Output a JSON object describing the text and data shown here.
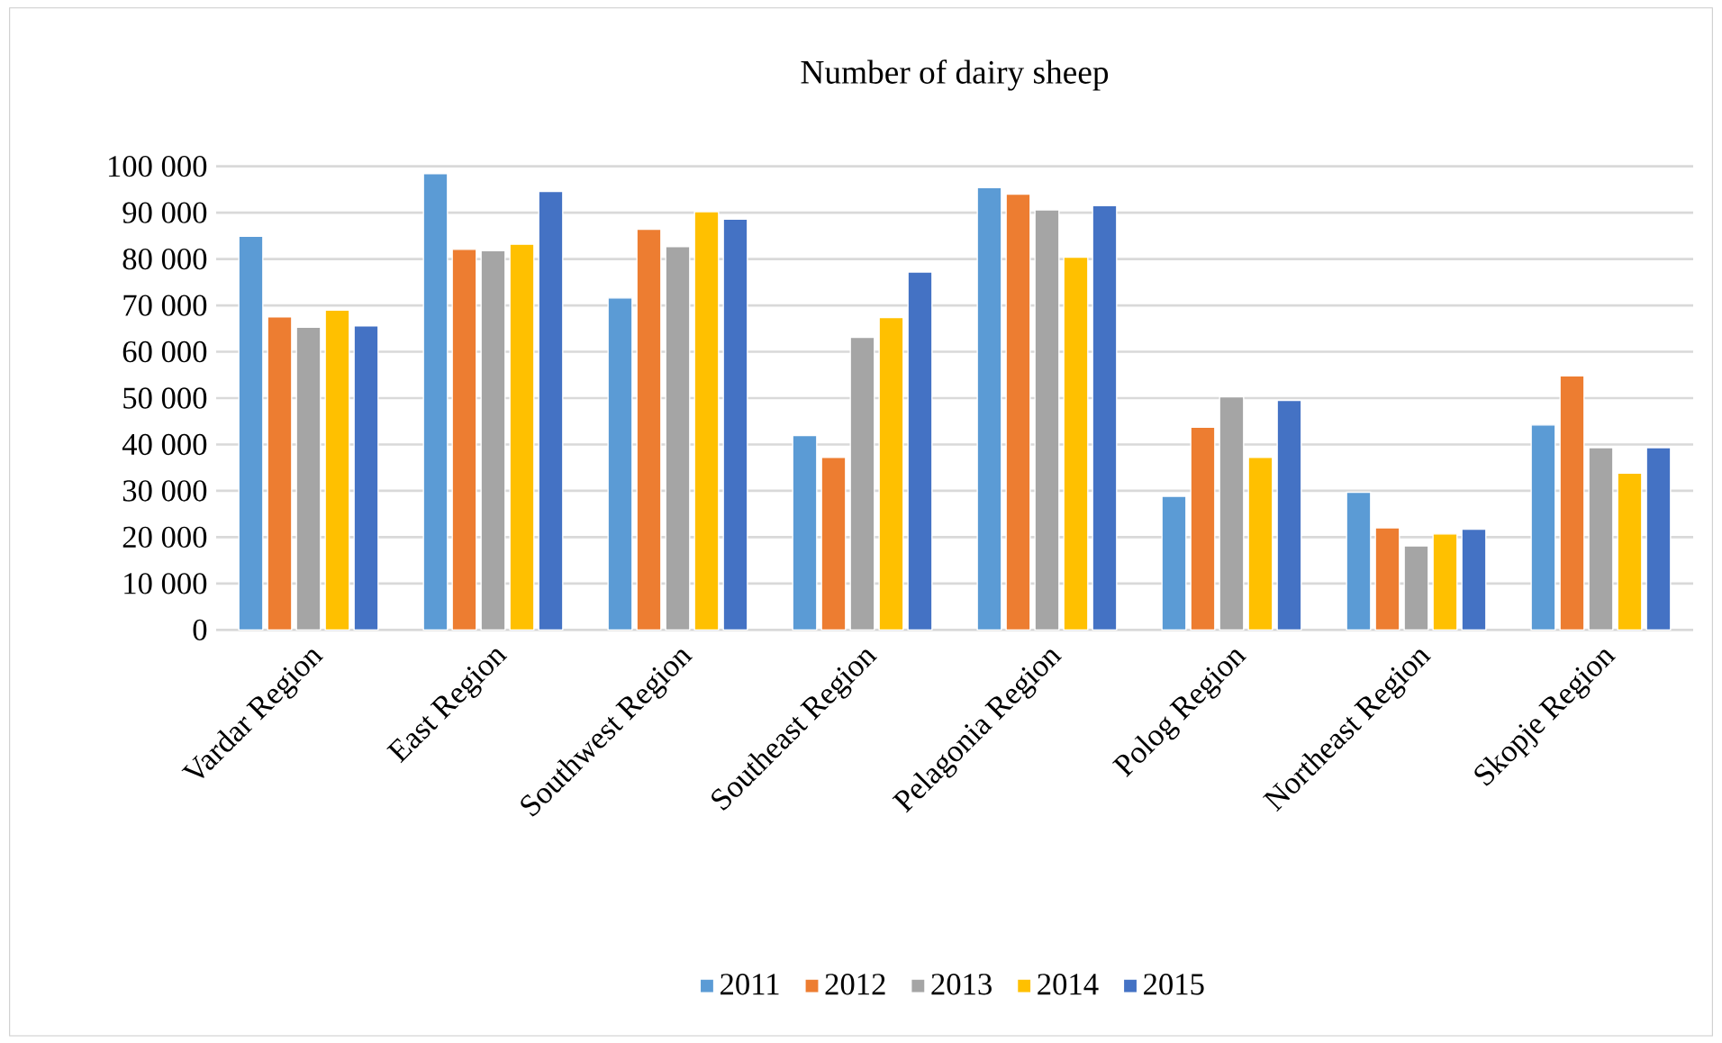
{
  "chart_data": {
    "type": "bar",
    "title": "Number of dairy sheep",
    "categories": [
      "Vardar Region",
      "East Region",
      "Southwest Region",
      "Southeast Region",
      "Pelagonia Region",
      "Polog Region",
      "Northeast Region",
      "Skopje Region"
    ],
    "series": [
      {
        "name": "2011",
        "color": "#5b9bd5",
        "values": [
          84900,
          98400,
          71600,
          41900,
          95400,
          28800,
          29700,
          44200
        ]
      },
      {
        "name": "2012",
        "color": "#ed7d31",
        "values": [
          67500,
          82100,
          86400,
          37200,
          94000,
          43700,
          22000,
          54800
        ]
      },
      {
        "name": "2013",
        "color": "#a5a5a5",
        "values": [
          65300,
          81800,
          82700,
          63100,
          90600,
          50300,
          18100,
          39300
        ]
      },
      {
        "name": "2014",
        "color": "#ffc000",
        "values": [
          69000,
          83200,
          90200,
          67400,
          80400,
          37200,
          20700,
          33800
        ]
      },
      {
        "name": "2015",
        "color": "#4472c4",
        "values": [
          65600,
          94600,
          88600,
          77200,
          91500,
          49500,
          21700,
          39300
        ]
      }
    ],
    "ylim": [
      0,
      100000
    ],
    "yticks": [
      {
        "value": 0,
        "label": "0"
      },
      {
        "value": 10000,
        "label": "10 000"
      },
      {
        "value": 20000,
        "label": "20 000"
      },
      {
        "value": 30000,
        "label": "30 000"
      },
      {
        "value": 40000,
        "label": "40 000"
      },
      {
        "value": 50000,
        "label": "50 000"
      },
      {
        "value": 60000,
        "label": "60 000"
      },
      {
        "value": 70000,
        "label": "70 000"
      },
      {
        "value": 80000,
        "label": "80 000"
      },
      {
        "value": 90000,
        "label": "90 000"
      },
      {
        "value": 100000,
        "label": "100 000"
      }
    ],
    "grid": "y",
    "legend": "bottom"
  }
}
